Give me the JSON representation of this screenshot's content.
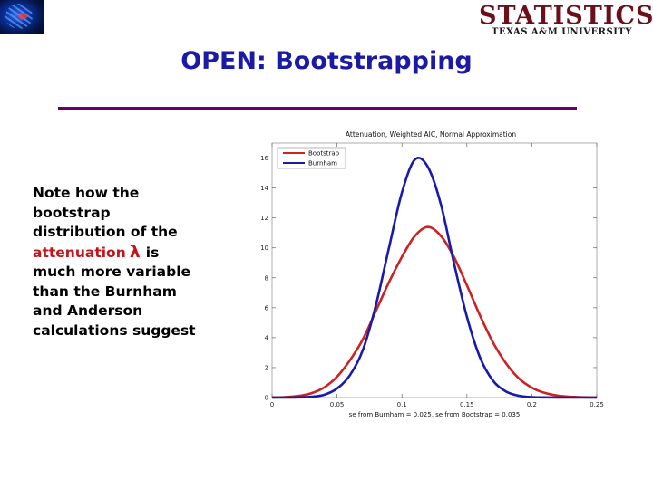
{
  "logo": {
    "word": "STATISTICS",
    "subtitle": "TEXAS A&M UNIVERSITY"
  },
  "slide": {
    "title": "OPEN: Bootstrapping",
    "note": {
      "line1": "Note how the",
      "line2": "bootstrap",
      "line3": "distribution of the",
      "line4_prefix": "attenuation",
      "symbol": "λ",
      "line4_suffix": "is",
      "line5": "much more variable",
      "line6": "than the Burnham",
      "line7": "and Anderson",
      "line8": "calculations suggest"
    }
  },
  "colors": {
    "title": "#1a1aa6",
    "rule": "#660066",
    "accent": "#c0161b",
    "bootstrap": "#cc2222",
    "burnham": "#1a1aaa"
  },
  "chart_data": {
    "type": "line",
    "title": "Attenuation, Weighted AIC, Normal Approximation",
    "xlabel": "se from Burnham = 0.025, se from Bootstrap = 0.035",
    "ylabel": "",
    "xlim": [
      0,
      0.25
    ],
    "ylim": [
      0,
      17
    ],
    "xticks": [
      0,
      0.05,
      0.1,
      0.15,
      0.2,
      0.25
    ],
    "xtick_labels": [
      "0",
      "0.05",
      "0.1",
      "0.15",
      "0.2",
      "0.25"
    ],
    "yticks": [
      0,
      2,
      4,
      6,
      8,
      10,
      12,
      14,
      16
    ],
    "ytick_labels": [
      "0",
      "2",
      "4",
      "6",
      "8",
      "10",
      "12",
      "14",
      "16"
    ],
    "grid": false,
    "legend": "top-left",
    "series": [
      {
        "name": "Bootstrap",
        "color": "#cc2222",
        "x": [
          0,
          0.01,
          0.02,
          0.03,
          0.04,
          0.05,
          0.06,
          0.07,
          0.08,
          0.09,
          0.1,
          0.11,
          0.12,
          0.13,
          0.14,
          0.15,
          0.16,
          0.17,
          0.18,
          0.19,
          0.2,
          0.21,
          0.22,
          0.23,
          0.24,
          0.25
        ],
        "y": [
          0.01,
          0.03,
          0.1,
          0.28,
          0.67,
          1.39,
          2.5,
          3.91,
          5.8,
          7.7,
          9.4,
          10.8,
          11.4,
          10.8,
          9.4,
          7.5,
          5.5,
          3.7,
          2.3,
          1.28,
          0.66,
          0.31,
          0.13,
          0.05,
          0.02,
          0.01
        ]
      },
      {
        "name": "Burnham",
        "color": "#1a1aaa",
        "x": [
          0,
          0.01,
          0.02,
          0.03,
          0.04,
          0.05,
          0.06,
          0.07,
          0.08,
          0.09,
          0.1,
          0.11,
          0.12,
          0.13,
          0.14,
          0.15,
          0.16,
          0.17,
          0.18,
          0.19,
          0.2,
          0.21,
          0.22,
          0.23,
          0.24,
          0.25
        ],
        "y": [
          0,
          0,
          0.01,
          0.05,
          0.18,
          0.6,
          1.5,
          3.2,
          6.2,
          10.0,
          13.7,
          15.9,
          15.4,
          12.9,
          9.0,
          5.4,
          2.7,
          1.14,
          0.41,
          0.12,
          0.03,
          0.01,
          0,
          0,
          0,
          0
        ]
      }
    ]
  }
}
